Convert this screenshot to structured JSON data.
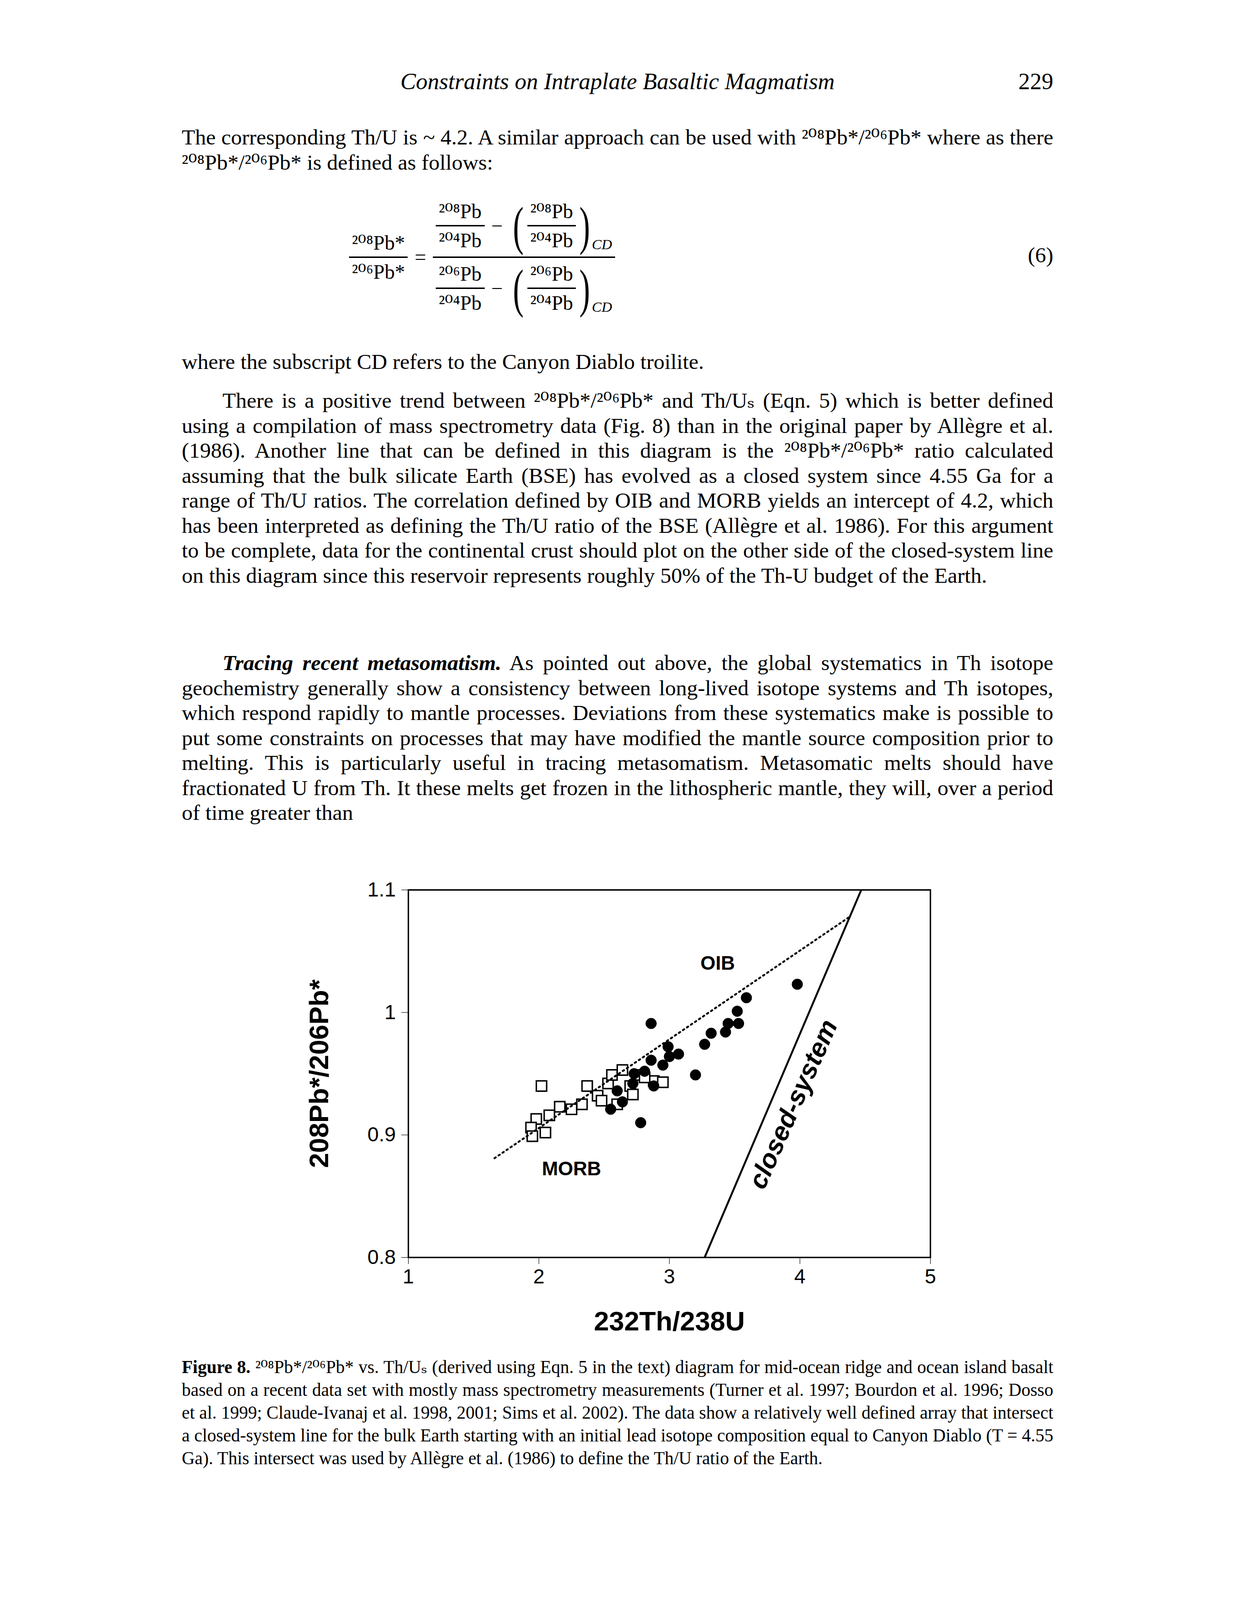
{
  "page": {
    "running_head": "Constraints on Intraplate Basaltic Magmatism",
    "page_number": "229"
  },
  "paragraph_1": "The corresponding Th/U is ~ 4.2. A similar approach can be used with ²⁰⁸Pb*/²⁰⁶Pb* where as there ²⁰⁸Pb*/²⁰⁶Pb* is defined as follows:",
  "equation": {
    "lhs": {
      "num": "²⁰⁸Pb*",
      "den": "²⁰⁶Pb*"
    },
    "equals": "=",
    "minus": "−",
    "open": "(",
    "close": ")",
    "rhs_num": {
      "ratio": {
        "num": "²⁰⁸Pb",
        "den": "²⁰⁴Pb"
      },
      "subscript": "CD"
    },
    "rhs_den": {
      "ratio": {
        "num": "²⁰⁶Pb",
        "den": "²⁰⁴Pb"
      },
      "subscript": "CD"
    },
    "number": "(6)"
  },
  "paragraph_2": "where the subscript CD refers to the Canyon Diablo troilite.",
  "paragraph_3": "There is a positive trend between ²⁰⁸Pb*/²⁰⁶Pb* and Th/Uₛ (Eqn. 5) which is better defined using a compilation of mass spectrometry data (Fig. 8) than in the original paper by Allègre et al. (1986). Another line that can be defined in this diagram is the ²⁰⁸Pb*/²⁰⁶Pb* ratio calculated assuming that the bulk silicate Earth (BSE) has evolved as a closed system since 4.55 Ga for a range of Th/U ratios. The correlation defined by OIB and MORB yields an intercept of 4.2, which has been interpreted as defining the Th/U ratio of the BSE (Allègre et al. 1986). For this argument to be complete, data for the continental crust should plot on the other side of the closed-system line on this diagram since this reservoir represents roughly 50% of the Th-U budget of the Earth.",
  "paragraph_4": {
    "heading": "Tracing recent metasomatism.",
    "text": "As pointed out above, the global systematics in Th isotope geochemistry generally show a consistency between long-lived isotope systems and Th isotopes, which respond rapidly to mantle processes. Deviations from these systematics make is possible to put some constraints on processes that may have modified the mantle source composition prior to melting. This is particularly useful in tracing metasomatism. Metasomatic melts should have fractionated U from Th. It these melts get frozen in the lithospheric mantle, they will, over a period of time greater than"
  },
  "chart_data": {
    "type": "scatter",
    "x_label": "232Th/238U",
    "y_label": "208Pb*/206Pb*",
    "xlim": [
      1,
      5
    ],
    "ylim": [
      0.8,
      1.1
    ],
    "xticks": [
      1,
      2,
      3,
      4,
      5
    ],
    "yticks": [
      0.8,
      0.9,
      1,
      1.1
    ],
    "grid": false,
    "series": [
      {
        "name": "MORB",
        "type": "scatter",
        "marker": "open-square",
        "color": "#000000",
        "x": [
          2.02,
          2.64,
          2.76,
          2.88,
          2.95,
          2.53,
          2.37,
          2.45,
          2.33,
          2.25,
          2.16,
          2.08,
          1.98,
          1.94,
          2.05,
          1.95,
          2.6,
          2.7,
          2.81,
          2.72,
          2.48,
          2.56
        ],
        "y": [
          0.94,
          0.953,
          0.949,
          0.944,
          0.943,
          0.942,
          0.94,
          0.932,
          0.925,
          0.921,
          0.923,
          0.916,
          0.913,
          0.906,
          0.902,
          0.899,
          0.925,
          0.94,
          0.947,
          0.933,
          0.928,
          0.949
        ],
        "label": {
          "x": 2.25,
          "y": 0.872
        }
      },
      {
        "name": "OIB",
        "type": "scatter",
        "marker": "circle",
        "color": "#000000",
        "x": [
          3.98,
          3.59,
          3.52,
          3.53,
          2.86,
          3.45,
          3.43,
          3.32,
          3.27,
          3.0,
          3.07,
          2.95,
          2.86,
          2.81,
          2.73,
          2.72,
          2.88,
          3.2,
          2.6,
          2.64,
          2.55,
          2.78,
          2.99
        ],
        "y": [
          1.023,
          1.012,
          1.001,
          0.991,
          0.991,
          0.991,
          0.984,
          0.983,
          0.974,
          0.964,
          0.966,
          0.957,
          0.961,
          0.952,
          0.95,
          0.942,
          0.94,
          0.949,
          0.936,
          0.927,
          0.921,
          0.91,
          0.972
        ],
        "label": {
          "x": 3.37,
          "y": 1.04
        }
      },
      {
        "type": "line",
        "line_style": "dotted",
        "color": "#000000",
        "x": [
          1.66,
          4.38
        ],
        "y": [
          0.881,
          1.078
        ]
      },
      {
        "name": "closed-system",
        "type": "line",
        "line_style": "solid",
        "color": "#000000",
        "x": [
          3.27,
          4.47
        ],
        "y": [
          0.8,
          1.1
        ],
        "label": {
          "x": 3.95,
          "y": 0.925
        }
      }
    ]
  },
  "caption": {
    "label": "Figure 8.",
    "text": "²⁰⁸Pb*/²⁰⁶Pb* vs. Th/Uₛ (derived using Eqn. 5 in the text) diagram for mid-ocean ridge and ocean island basalt based on a recent data set with mostly mass spectrometry measurements (Turner et al. 1997; Bourdon et al. 1996; Dosso et al. 1999; Claude-Ivanaj et al. 1998, 2001; Sims et al. 2002). The data show a relatively well defined array that intersect a closed-system line for the bulk Earth starting with an initial lead isotope composition equal to Canyon Diablo (T = 4.55 Ga). This intersect was used by Allègre et al. (1986) to define the Th/U ratio of the Earth."
  }
}
